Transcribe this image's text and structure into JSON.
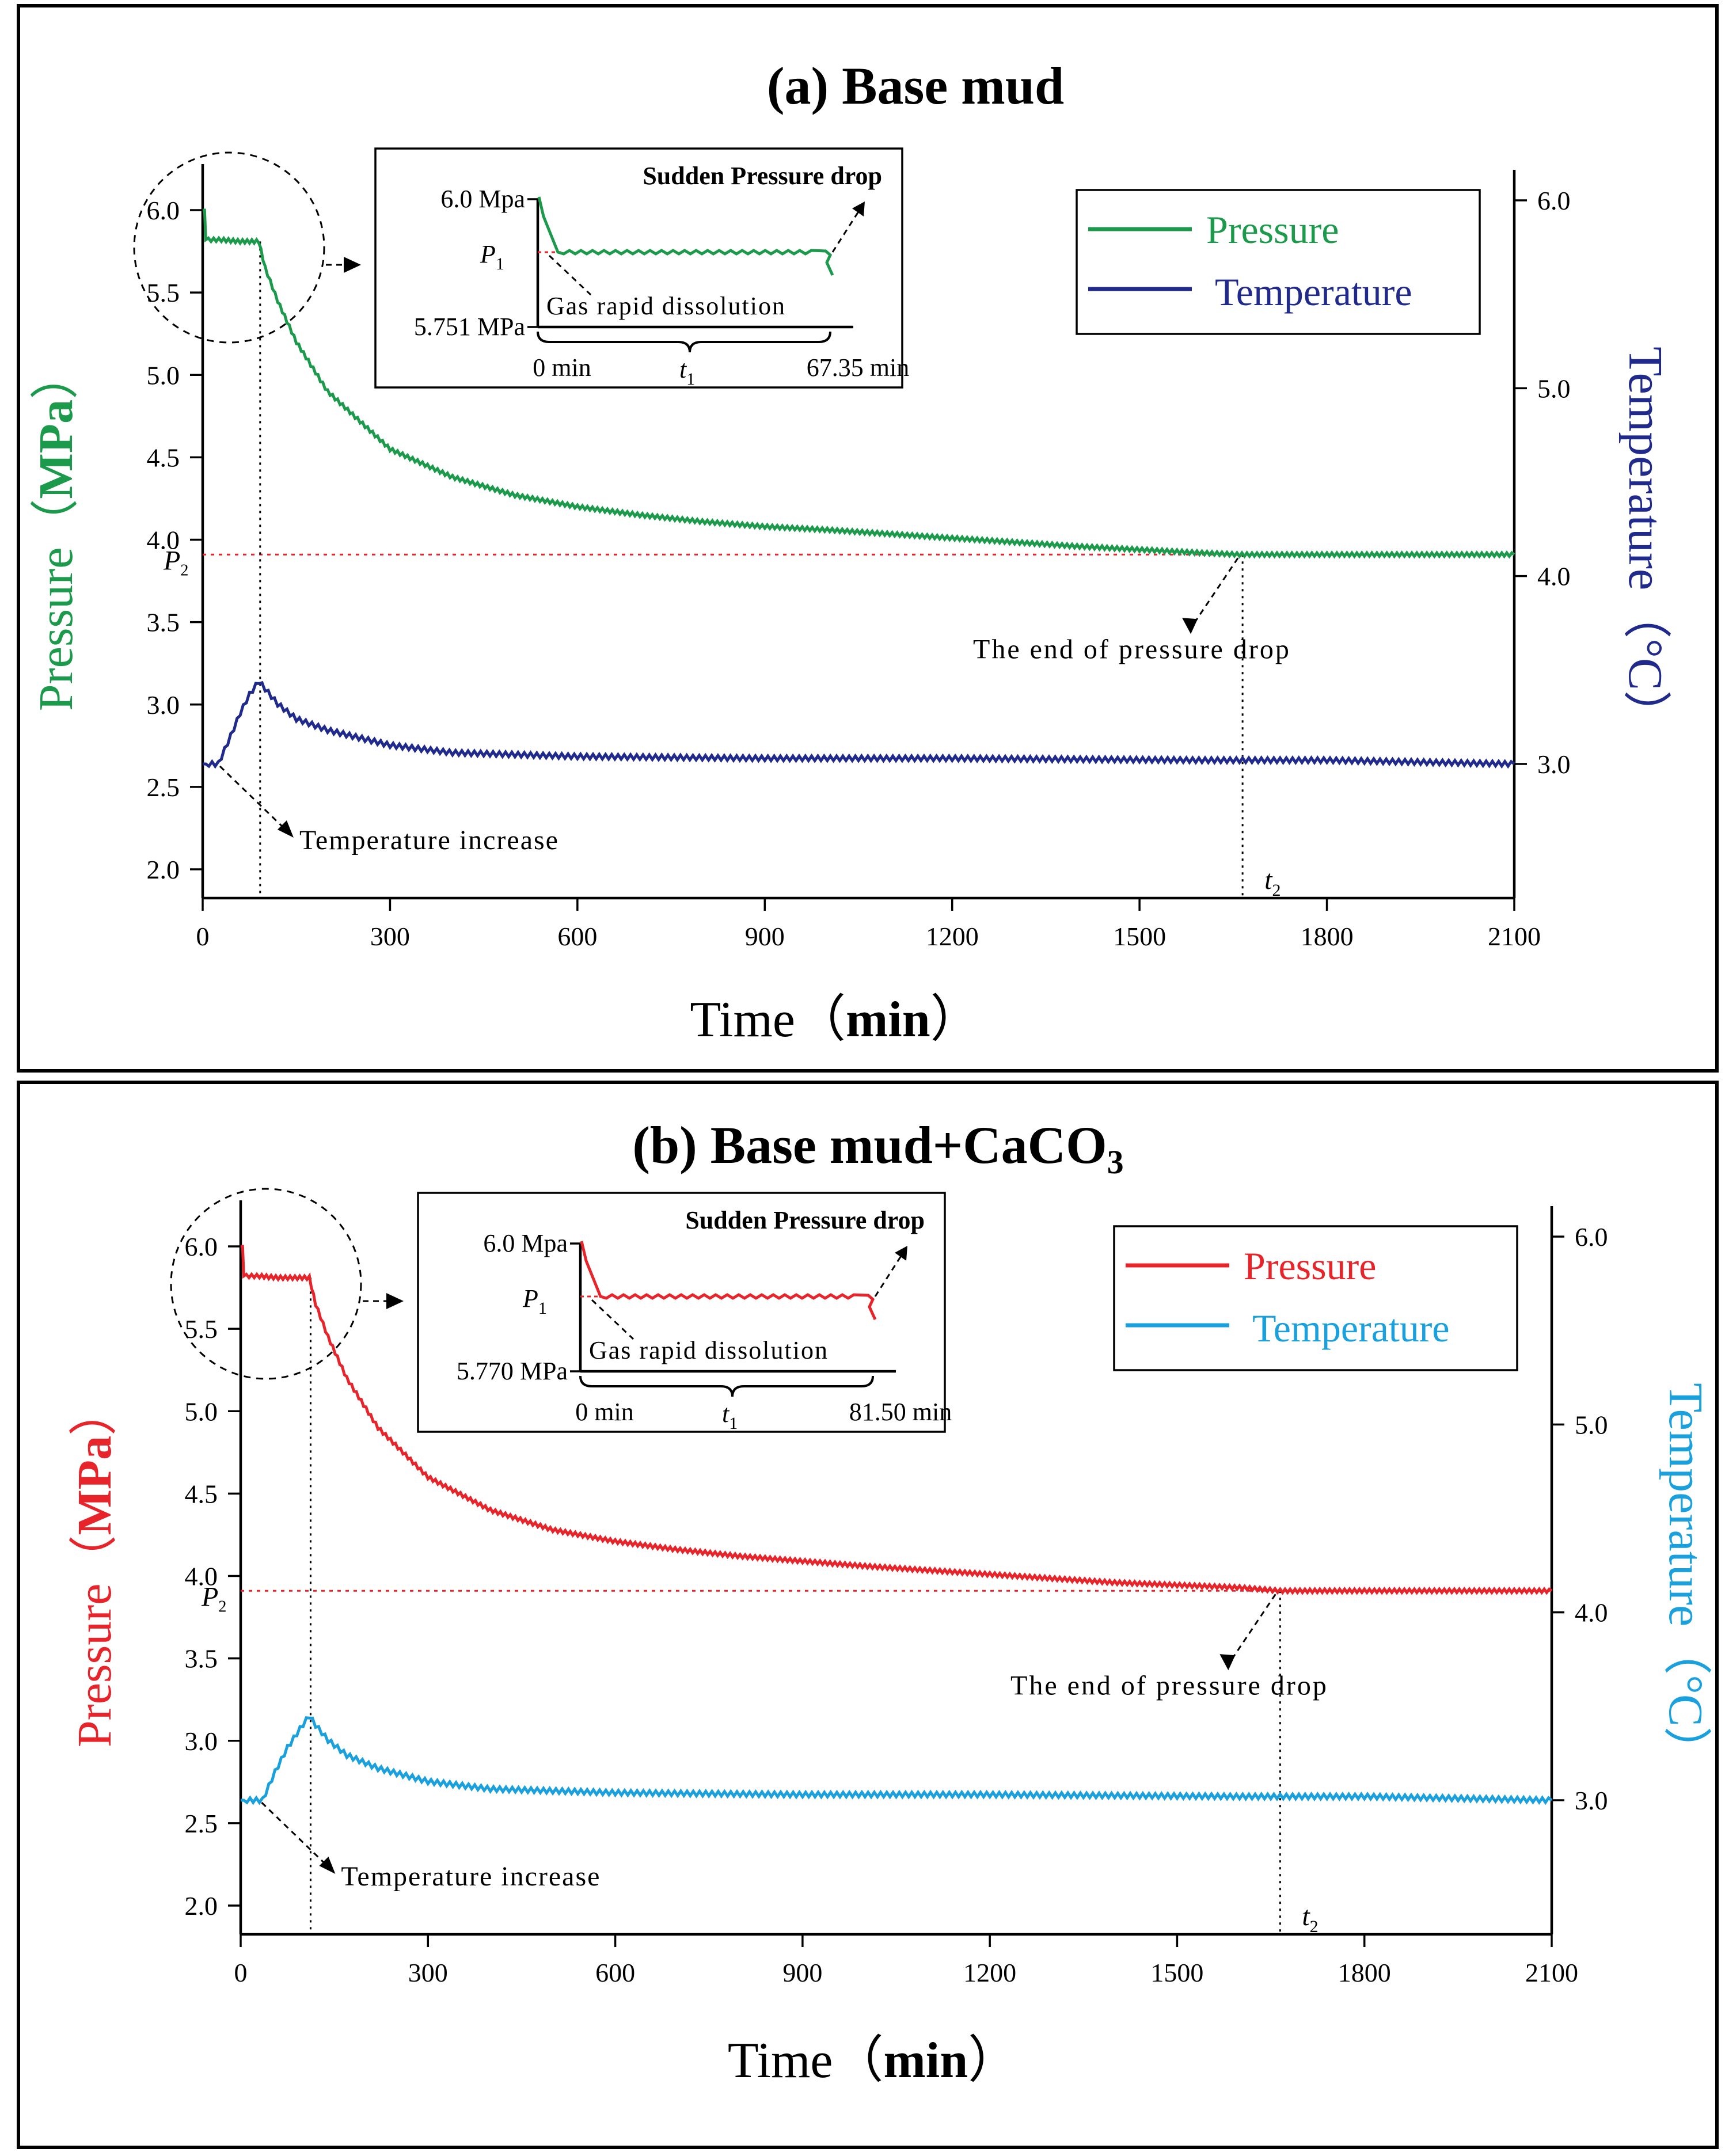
{
  "chart_data": [
    {
      "panel": "a",
      "type": "line",
      "title": "(a)  Base mud",
      "xlabel": "Time（",
      "xlabel_unit": "min",
      "xlabel_close": "）",
      "ylabel": "Pressure（",
      "ylabel_unit": "MPa",
      "ylabel_close": "）",
      "y2label": "Temperature（°C）",
      "xlim": [
        0,
        2100
      ],
      "ylim": [
        1.85,
        6.2
      ],
      "y2lim": [
        2.3,
        6.2
      ],
      "xticks": [
        0,
        300,
        600,
        900,
        1200,
        1500,
        1800,
        2100
      ],
      "xtick_labels": [
        "0",
        "300",
        "600",
        "900",
        "1200",
        "1500",
        "1800",
        "2100"
      ],
      "yticks": [
        2.0,
        2.5,
        3.0,
        3.5,
        4.0,
        4.5,
        5.0,
        5.5,
        6.0
      ],
      "ytick_labels": [
        "2.0",
        "2.5",
        "3.0",
        "3.5",
        "4.0",
        "4.5",
        "5.0",
        "5.5",
        "6.0"
      ],
      "y2ticks": [
        3.0,
        4.0,
        5.0,
        6.0
      ],
      "y2tick_labels": [
        "3.0",
        "4.0",
        "5.0",
        "6.0"
      ],
      "series": [
        {
          "name": "Pressure",
          "axis": "left",
          "color": "#1a9a4a",
          "x": [
            0,
            3,
            5,
            30,
            60,
            90,
            100,
            120,
            150,
            200,
            300,
            400,
            500,
            600,
            700,
            800,
            900,
            1000,
            1200,
            1400,
            1600,
            1660,
            1800,
            2100
          ],
          "y": [
            6.0,
            6.0,
            5.82,
            5.82,
            5.81,
            5.81,
            5.65,
            5.45,
            5.2,
            4.9,
            4.55,
            4.38,
            4.27,
            4.2,
            4.15,
            4.11,
            4.08,
            4.06,
            4.01,
            3.96,
            3.92,
            3.91,
            3.91,
            3.91
          ]
        },
        {
          "name": "Temperature",
          "axis": "right",
          "color": "#1f2a8c",
          "x": [
            0,
            25,
            45,
            60,
            75,
            90,
            100,
            120,
            150,
            200,
            300,
            400,
            600,
            900,
            1200,
            1600,
            1800,
            2100
          ],
          "y": [
            3.0,
            3.0,
            3.15,
            3.27,
            3.37,
            3.44,
            3.4,
            3.32,
            3.24,
            3.18,
            3.1,
            3.06,
            3.04,
            3.03,
            3.03,
            3.02,
            3.02,
            3.0
          ]
        }
      ],
      "legend": [
        "Pressure",
        "Temperature"
      ],
      "annotations": {
        "end_of_drop": "The end of pressure drop",
        "temp_increase": "Temperature increase",
        "p2": "P",
        "p2_sub": "2",
        "t2": "t",
        "t2_sub": "2",
        "t2_x": 1665,
        "t1_x": 92,
        "p2_y": 3.91
      },
      "inset": {
        "top_label": "6.0 Mpa",
        "bottom_label": "5.751 MPa",
        "p1": "P",
        "p1_sub": "1",
        "sudden": "Sudden Pressure drop",
        "dissolution": "Gas rapid  dissolution",
        "x_start": "0 min",
        "t1": "t",
        "t1_sub": "1",
        "x_end": "67.35 min"
      }
    },
    {
      "panel": "b",
      "type": "line",
      "title": "(b) Base mud+CaCO",
      "title_sub": "3",
      "xlabel": "Time（",
      "xlabel_unit": "min",
      "xlabel_close": "）",
      "ylabel": "Pressure（",
      "ylabel_unit": "MPa",
      "ylabel_close": "）",
      "y2label": "Temperature（°C）",
      "xlim": [
        0,
        2100
      ],
      "ylim": [
        1.85,
        6.2
      ],
      "y2lim": [
        2.3,
        6.2
      ],
      "xticks": [
        0,
        300,
        600,
        900,
        1200,
        1500,
        1800,
        2100
      ],
      "xtick_labels": [
        "0",
        "300",
        "600",
        "900",
        "1200",
        "1500",
        "1800",
        "2100"
      ],
      "yticks": [
        2.0,
        2.5,
        3.0,
        3.5,
        4.0,
        4.5,
        5.0,
        5.5,
        6.0
      ],
      "ytick_labels": [
        "2.0",
        "2.5",
        "3.0",
        "3.5",
        "4.0",
        "4.5",
        "5.0",
        "5.5",
        "6.0"
      ],
      "y2ticks": [
        3.0,
        4.0,
        5.0,
        6.0
      ],
      "y2tick_labels": [
        "3.0",
        "4.0",
        "5.0",
        "6.0"
      ],
      "series": [
        {
          "name": "Pressure",
          "axis": "left",
          "color": "#e8242b",
          "x": [
            0,
            3,
            5,
            30,
            60,
            110,
            120,
            140,
            170,
            220,
            300,
            400,
            500,
            600,
            700,
            800,
            900,
            1000,
            1200,
            1400,
            1600,
            1665,
            1800,
            2100
          ],
          "y": [
            6.0,
            6.0,
            5.82,
            5.82,
            5.81,
            5.81,
            5.65,
            5.45,
            5.2,
            4.9,
            4.6,
            4.4,
            4.28,
            4.21,
            4.16,
            4.12,
            4.09,
            4.06,
            4.01,
            3.96,
            3.93,
            3.91,
            3.91,
            3.91
          ]
        },
        {
          "name": "Temperature",
          "axis": "right",
          "color": "#1aa0dc",
          "x": [
            0,
            35,
            55,
            75,
            95,
            110,
            120,
            140,
            170,
            220,
            300,
            400,
            600,
            900,
            1200,
            1600,
            1800,
            2100
          ],
          "y": [
            3.0,
            3.0,
            3.15,
            3.28,
            3.38,
            3.45,
            3.4,
            3.32,
            3.24,
            3.17,
            3.1,
            3.06,
            3.04,
            3.03,
            3.03,
            3.02,
            3.02,
            3.0
          ]
        }
      ],
      "legend": [
        "Pressure",
        "Temperature"
      ],
      "annotations": {
        "end_of_drop": "The end of pressure drop",
        "temp_increase": "Temperature increase",
        "p2": "P",
        "p2_sub": "2",
        "t2": "t",
        "t2_sub": "2",
        "t2_x": 1665,
        "t1_x": 112,
        "p2_y": 3.91
      },
      "inset": {
        "top_label": "6.0 Mpa",
        "bottom_label": "5.770 MPa",
        "p1": "P",
        "p1_sub": "1",
        "sudden": "Sudden Pressure drop",
        "dissolution": "Gas rapid  dissolution",
        "x_start": "0 min",
        "t1": "t",
        "t1_sub": "1",
        "x_end": "81.50 min"
      }
    }
  ]
}
